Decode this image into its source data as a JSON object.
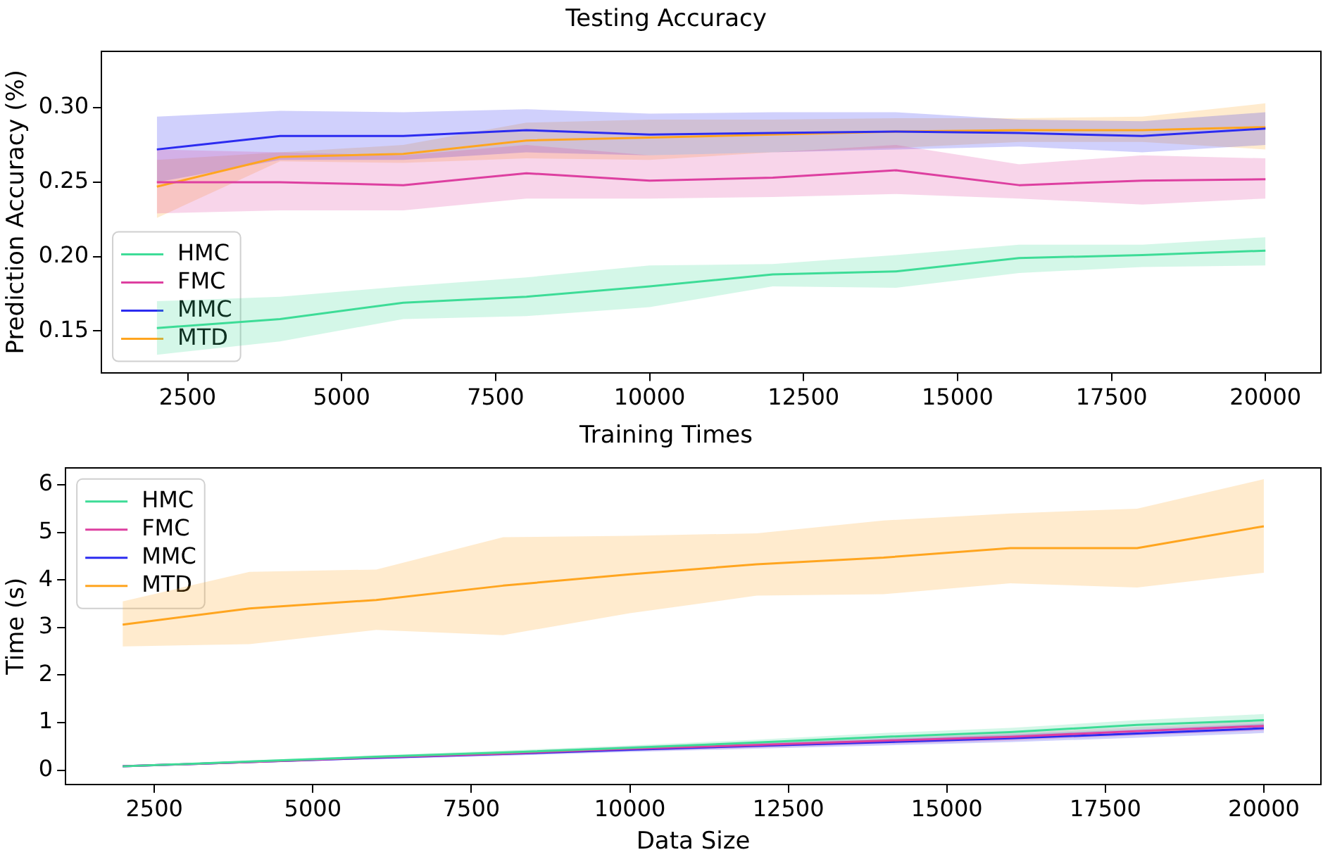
{
  "chart_data": [
    {
      "type": "line",
      "title": "Testing Accuracy",
      "ylabel": "Prediction Accuracy (%)",
      "x": [
        2000,
        4000,
        6000,
        8000,
        10000,
        12000,
        14000,
        16000,
        18000,
        20000
      ],
      "xlim": [
        1100,
        20900
      ],
      "xticks": [
        2500,
        5000,
        7500,
        10000,
        12500,
        15000,
        17500,
        20000
      ],
      "ylim": [
        0.122,
        0.338
      ],
      "yticks": [
        {
          "value": 0.15,
          "label": "0.15"
        },
        {
          "value": 0.2,
          "label": "0.20"
        },
        {
          "value": 0.25,
          "label": "0.25"
        },
        {
          "value": 0.3,
          "label": "0.30"
        }
      ],
      "legend": "lower left",
      "grid": false,
      "series": [
        {
          "name": "HMC",
          "color": "#3ddc97",
          "values": [
            0.152,
            0.158,
            0.169,
            0.173,
            0.18,
            0.188,
            0.19,
            0.199,
            0.201,
            0.204
          ],
          "lower": [
            0.134,
            0.143,
            0.158,
            0.16,
            0.166,
            0.18,
            0.179,
            0.189,
            0.193,
            0.194
          ],
          "upper": [
            0.17,
            0.173,
            0.18,
            0.186,
            0.194,
            0.195,
            0.201,
            0.208,
            0.208,
            0.213
          ]
        },
        {
          "name": "FMC",
          "color": "#dd3fa0",
          "values": [
            0.25,
            0.25,
            0.248,
            0.256,
            0.251,
            0.253,
            0.258,
            0.248,
            0.251,
            0.252
          ],
          "lower": [
            0.229,
            0.231,
            0.231,
            0.239,
            0.239,
            0.24,
            0.242,
            0.239,
            0.235,
            0.239
          ],
          "upper": [
            0.272,
            0.27,
            0.268,
            0.275,
            0.268,
            0.27,
            0.275,
            0.262,
            0.268,
            0.266
          ]
        },
        {
          "name": "MMC",
          "color": "#2b2bf0",
          "values": [
            0.272,
            0.281,
            0.281,
            0.285,
            0.282,
            0.283,
            0.284,
            0.283,
            0.281,
            0.286
          ],
          "lower": [
            0.25,
            0.265,
            0.265,
            0.27,
            0.268,
            0.27,
            0.272,
            0.274,
            0.27,
            0.275
          ],
          "upper": [
            0.294,
            0.298,
            0.297,
            0.299,
            0.296,
            0.297,
            0.297,
            0.292,
            0.291,
            0.297
          ]
        },
        {
          "name": "MTD",
          "color": "#ffa51f",
          "values": [
            0.247,
            0.267,
            0.269,
            0.278,
            0.28,
            0.282,
            0.284,
            0.285,
            0.285,
            0.287
          ],
          "lower": [
            0.226,
            0.264,
            0.263,
            0.266,
            0.265,
            0.27,
            0.273,
            0.277,
            0.277,
            0.272
          ],
          "upper": [
            0.265,
            0.27,
            0.275,
            0.29,
            0.292,
            0.292,
            0.293,
            0.293,
            0.294,
            0.303
          ]
        }
      ]
    },
    {
      "type": "line",
      "title": "Training Times",
      "xlabel": "Data Size",
      "ylabel": "Time (s)",
      "x": [
        2000,
        4000,
        6000,
        8000,
        10000,
        12000,
        14000,
        16000,
        18000,
        20000
      ],
      "xlim": [
        1100,
        20900
      ],
      "xticks": [
        2500,
        5000,
        7500,
        10000,
        12500,
        15000,
        17500,
        20000
      ],
      "ylim": [
        -0.3,
        6.36
      ],
      "yticks": [
        0,
        1,
        2,
        3,
        4,
        5,
        6
      ],
      "legend": "upper left",
      "grid": false,
      "series": [
        {
          "name": "HMC",
          "color": "#3ddc97",
          "values": [
            0.08,
            0.18,
            0.28,
            0.37,
            0.47,
            0.58,
            0.7,
            0.8,
            0.95,
            1.05
          ],
          "lower": [
            0.07,
            0.16,
            0.25,
            0.33,
            0.42,
            0.52,
            0.62,
            0.71,
            0.85,
            0.93
          ],
          "upper": [
            0.09,
            0.2,
            0.31,
            0.41,
            0.52,
            0.64,
            0.78,
            0.89,
            1.05,
            1.18
          ]
        },
        {
          "name": "FMC",
          "color": "#dd3fa0",
          "values": [
            0.08,
            0.17,
            0.27,
            0.35,
            0.45,
            0.53,
            0.62,
            0.7,
            0.82,
            0.93
          ],
          "lower": [
            0.07,
            0.15,
            0.24,
            0.31,
            0.4,
            0.47,
            0.55,
            0.62,
            0.73,
            0.83
          ],
          "upper": [
            0.09,
            0.19,
            0.3,
            0.39,
            0.5,
            0.59,
            0.69,
            0.78,
            0.91,
            1.03
          ]
        },
        {
          "name": "MMC",
          "color": "#2b2bf0",
          "values": [
            0.08,
            0.17,
            0.26,
            0.34,
            0.43,
            0.51,
            0.59,
            0.67,
            0.77,
            0.88
          ],
          "lower": [
            0.07,
            0.15,
            0.23,
            0.3,
            0.38,
            0.45,
            0.52,
            0.59,
            0.68,
            0.78
          ],
          "upper": [
            0.09,
            0.19,
            0.29,
            0.38,
            0.48,
            0.57,
            0.66,
            0.75,
            0.86,
            0.98
          ]
        },
        {
          "name": "MTD",
          "color": "#ffa51f",
          "values": [
            3.06,
            3.4,
            3.58,
            3.88,
            4.12,
            4.33,
            4.47,
            4.67,
            4.67,
            5.13
          ],
          "lower": [
            2.6,
            2.65,
            2.95,
            2.84,
            3.3,
            3.67,
            3.7,
            3.93,
            3.84,
            4.15
          ],
          "upper": [
            3.55,
            4.17,
            4.22,
            4.9,
            4.93,
            4.98,
            5.25,
            5.4,
            5.5,
            6.12
          ]
        }
      ]
    }
  ]
}
